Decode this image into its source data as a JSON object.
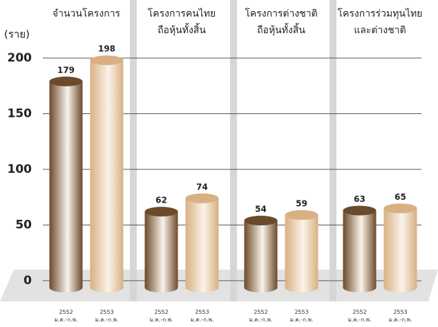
{
  "chart_data": {
    "type": "bar",
    "y_label": "(ราย)",
    "categories": [
      "จำนวนโครงการ",
      "โครงการคนไทย\nถือหุ้นทั้งสิ้น",
      "โครงการต่างชาติ\nถือหุ้นทั้งสิ้น",
      "โครงการร่วมทุนไทย\nและต่างชาติ"
    ],
    "series": [
      {
        "name": "2552\nม.ค.-ก.พ.",
        "color": "#6b4a2b",
        "values": [
          179,
          62,
          54,
          63
        ]
      },
      {
        "name": "2553\nม.ค.-ก.พ.",
        "color": "#d8b083",
        "values": [
          198,
          74,
          59,
          65
        ]
      }
    ],
    "ylim": [
      0,
      200
    ],
    "yticks": [
      0,
      50,
      100,
      150,
      200
    ],
    "grid": true
  }
}
